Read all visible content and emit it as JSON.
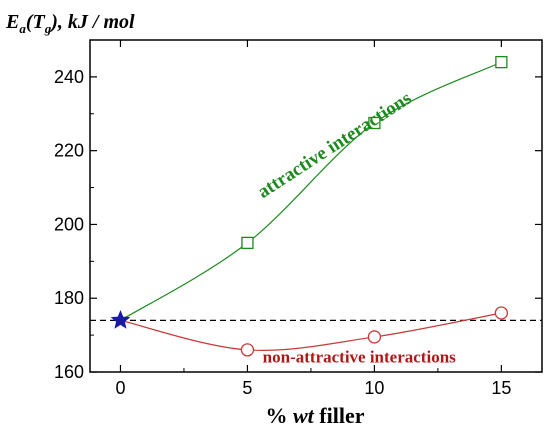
{
  "chart_data": {
    "type": "line",
    "ylabel_parts": {
      "main": "E",
      "sub": "a",
      "open": "(T",
      "sub2": "g",
      "rest": "), kJ / mol"
    },
    "xlabel_parts": {
      "pre": "% ",
      "em": "wt",
      "post": " filler"
    },
    "xlim": [
      -1.2,
      16.6
    ],
    "ylim": [
      160,
      250
    ],
    "x_ticks": [
      0,
      5,
      10,
      15
    ],
    "y_ticks": [
      160,
      180,
      200,
      220,
      240
    ],
    "reference_y": 174,
    "series": [
      {
        "marker": "square",
        "color": "#1e8a1e",
        "x": [
          0,
          5,
          10,
          15
        ],
        "y": [
          174,
          195,
          227.5,
          244
        ],
        "annotation": "attractive interactions"
      },
      {
        "marker": "circle",
        "color": "#c83a3a",
        "x": [
          0,
          5,
          10,
          15
        ],
        "y": [
          174,
          166,
          169.5,
          176
        ],
        "annotation": "non-attractive  interactions"
      }
    ],
    "base_point": {
      "x": 0,
      "y": 174,
      "marker": "star",
      "color": "#1a1aa8"
    },
    "grid": false
  }
}
